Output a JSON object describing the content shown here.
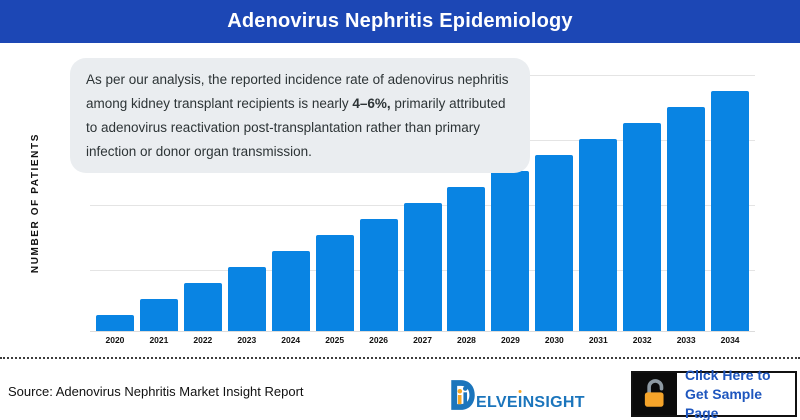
{
  "header": {
    "title": "Adenovirus Nephritis Epidemiology"
  },
  "annotation": {
    "text_before": "As per our analysis, the reported incidence rate of adenovirus nephritis among kidney transplant recipients is nearly ",
    "bold": "4–6%,",
    "text_after": " primarily attributed to adenovirus reactivation post-transplantation rather than primary infection or donor organ transmission."
  },
  "chart_data": {
    "type": "bar",
    "title": "Adenovirus Nephritis Epidemiology",
    "categories": [
      "2020",
      "2021",
      "2022",
      "2023",
      "2024",
      "2025",
      "2026",
      "2027",
      "2028",
      "2029",
      "2030",
      "2031",
      "2032",
      "2033",
      "2034"
    ],
    "values": [
      1,
      2,
      3,
      4,
      5,
      6,
      7,
      8,
      9,
      10,
      11,
      12,
      13,
      14,
      15
    ],
    "values_note": "y-axis has no numeric tick labels; values are relative heights estimated from pixels (linear growth, max = 2034 bar)",
    "xlabel": "",
    "ylabel": "NUMBER OF PATIENTS",
    "ylim": [
      0,
      16
    ],
    "grid": "horizontal gridlines, no y tick labels",
    "legend": "none"
  },
  "footer": {
    "source": "Source: Adenovirus Nephritis Market Insight Report",
    "logo": {
      "d": "D",
      "mid": "ELVE",
      "dotted_i": "I",
      "rest": "NSIGHT"
    },
    "cta_label": "Click Here to Get Sample Page"
  },
  "colors": {
    "header_bg": "#1C47B5",
    "bar": "#0984E3",
    "annotation_bg": "#EAEDF0",
    "gridline": "#E4E4E4",
    "logo_blue": "#1B75BC",
    "logo_orange": "#F5A623",
    "lock_orange": "#F5A42A",
    "cta_text": "#1E56BE"
  }
}
